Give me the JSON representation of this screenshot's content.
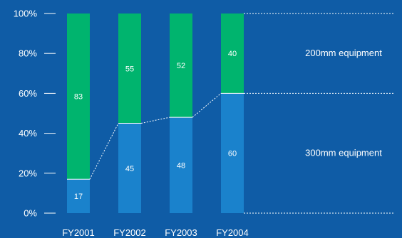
{
  "chart_data": {
    "type": "bar",
    "stacked": true,
    "categories": [
      "FY2001",
      "FY2002",
      "FY2003",
      "FY2004"
    ],
    "series": [
      {
        "name": "300mm equipment",
        "values": [
          17,
          45,
          48,
          60
        ],
        "color": "#1a82cc"
      },
      {
        "name": "200mm equipment",
        "values": [
          83,
          55,
          52,
          40
        ],
        "color": "#00b46e"
      }
    ],
    "ylim": [
      0,
      100
    ],
    "yticks": [
      "0%",
      "20%",
      "40%",
      "60%",
      "80%",
      "100%"
    ],
    "title": "",
    "xlabel": "",
    "ylabel": "",
    "background": "#0f5ca6",
    "legend": "right, inline labels",
    "connector_lines": "dotted"
  }
}
